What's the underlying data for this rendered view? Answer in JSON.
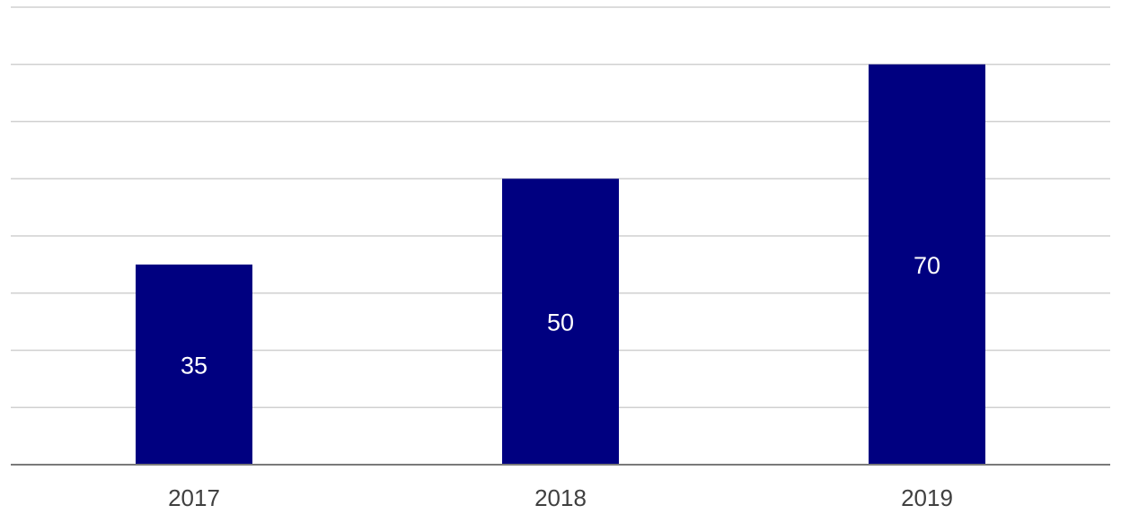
{
  "chart_data": {
    "type": "bar",
    "categories": [
      "2017",
      "2018",
      "2019"
    ],
    "values": [
      35,
      50,
      70
    ],
    "title": "",
    "xlabel": "",
    "ylabel": "",
    "ylim": [
      0,
      80
    ],
    "grid": true,
    "legend": "none",
    "bar_color": "#000080",
    "data_labels": [
      "35",
      "50",
      "70"
    ]
  }
}
